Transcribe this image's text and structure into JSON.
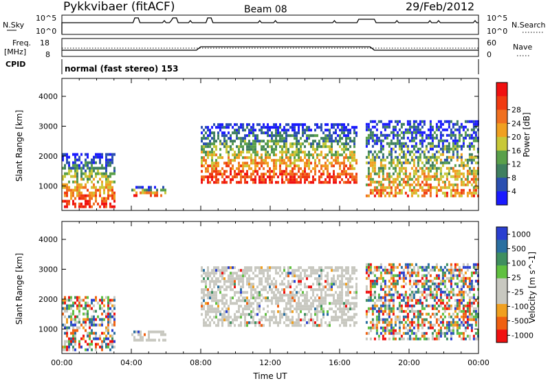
{
  "header": {
    "station": "Pykkvibaer (fitACF)",
    "beam": "Beam 08",
    "date": "29/Feb/2012"
  },
  "strip_labels": {
    "nsky": "N.Sky",
    "nsearch": "N.Search",
    "freq_line1": "Freq.",
    "freq_line2": "[MHz]",
    "nave": "Nave",
    "cpid": "CPID",
    "cpid_value": "normal (fast stereo) 153",
    "nsky_ticks": [
      "10^5",
      "10^0"
    ],
    "nsearch_ticks": [
      "10^5",
      "10^0"
    ],
    "freq_ticks": [
      "18",
      "8"
    ],
    "nave_ticks": [
      "60",
      "0"
    ]
  },
  "colors": {
    "power_scale": [
      "#1a1aff",
      "#2a4fb0",
      "#3f7f5f",
      "#5aa04a",
      "#c8c838",
      "#f0a020",
      "#f07020",
      "#f03a10",
      "#f01010"
    ],
    "velocity_scale": [
      "#f01010",
      "#f06010",
      "#f0a020",
      "#c8c8c0",
      "#c8c8c0",
      "#60c040",
      "#3f8f5f",
      "#2a6fa0",
      "#2a3fd0"
    ]
  },
  "chart_data": [
    {
      "type": "heatmap",
      "ylabel": "Slant Range [km]",
      "ylim": [
        180,
        4600
      ],
      "yticks": [
        "1000",
        "2000",
        "3000",
        "4000"
      ],
      "colorbar_label": "Power [dB]",
      "colorbar_ticks": [
        "4",
        "8",
        "12",
        "16",
        "20",
        "24",
        "28"
      ],
      "x_range_hours": [
        0,
        24
      ],
      "echo_regions": [
        {
          "t0": 0.0,
          "t1": 3.0,
          "r0": 300,
          "r1": 2100,
          "level": "high"
        },
        {
          "t0": 4.0,
          "t1": 6.0,
          "r0": 700,
          "r1": 1000,
          "level": "high"
        },
        {
          "t0": 8.0,
          "t1": 17.0,
          "r0": 1100,
          "r1": 3100,
          "level": "high"
        },
        {
          "t0": 17.5,
          "t1": 24.0,
          "r0": 700,
          "r1": 3200,
          "level": "medium"
        }
      ]
    },
    {
      "type": "heatmap",
      "xlabel": "Time UT",
      "ylabel": "Slant Range [km]",
      "ylim": [
        180,
        4600
      ],
      "yticks": [
        "1000",
        "2000",
        "3000",
        "4000"
      ],
      "xticks": [
        "00:00",
        "04:00",
        "08:00",
        "12:00",
        "16:00",
        "20:00",
        "00:00"
      ],
      "colorbar_label": "Velocity [m s^-1]",
      "colorbar_ticks": [
        "1000",
        "500",
        "100",
        "25",
        "-25",
        "-100",
        "-500",
        "-1000"
      ],
      "x_range_hours": [
        0,
        24
      ],
      "echo_regions": [
        {
          "t0": 0.0,
          "t1": 3.0,
          "r0": 300,
          "r1": 2100,
          "level": "mixed"
        },
        {
          "t0": 4.0,
          "t1": 6.0,
          "r0": 600,
          "r1": 950,
          "level": "low"
        },
        {
          "t0": 8.0,
          "t1": 17.0,
          "r0": 1100,
          "r1": 3100,
          "level": "low"
        },
        {
          "t0": 17.5,
          "t1": 24.0,
          "r0": 700,
          "r1": 3200,
          "level": "mixed"
        }
      ]
    }
  ]
}
